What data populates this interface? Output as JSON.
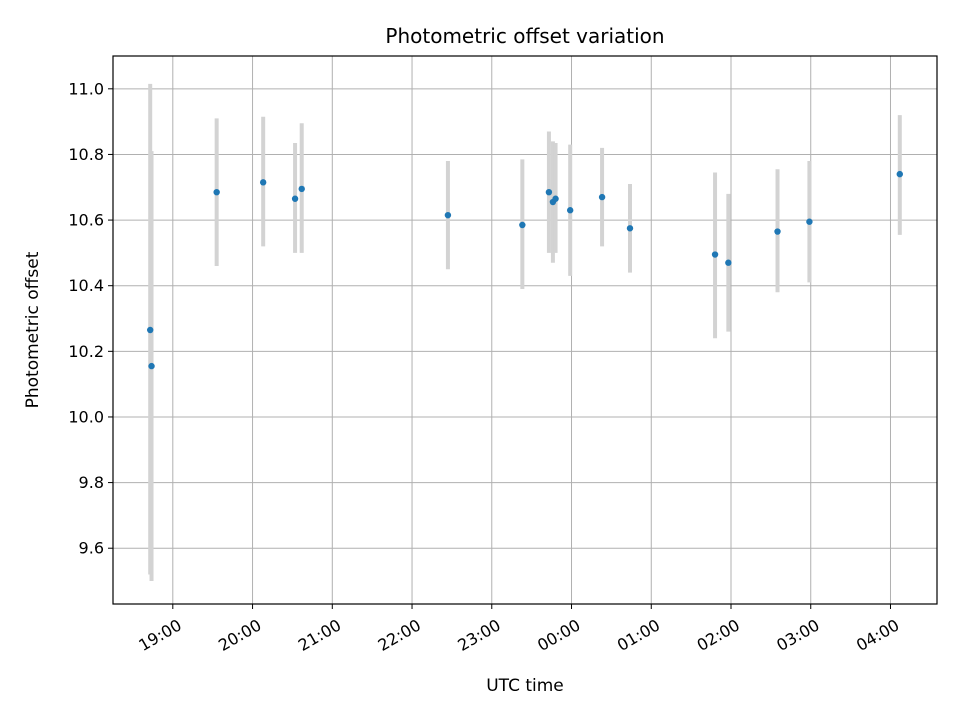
{
  "chart_data": {
    "type": "scatter",
    "title": "Photometric offset variation",
    "xlabel": "UTC time",
    "ylabel": "Photometric offset",
    "xlim": [
      "18:15",
      "04:35"
    ],
    "ylim": [
      9.43,
      11.1
    ],
    "grid": true,
    "colors": {
      "point": "#1f77b4",
      "errorbar": "#d3d3d3",
      "grid": "#b0b0b0"
    },
    "x_ticks": [
      "19:00",
      "20:00",
      "21:00",
      "22:00",
      "23:00",
      "00:00",
      "01:00",
      "02:00",
      "03:00",
      "04:00"
    ],
    "y_ticks": [
      "9.6",
      "9.8",
      "10.0",
      "10.2",
      "10.4",
      "10.6",
      "10.8",
      "11.0"
    ],
    "points": [
      {
        "x": "18:43",
        "y": 10.265,
        "ylow": 9.52,
        "yhigh": 11.015
      },
      {
        "x": "18:44",
        "y": 10.155,
        "ylow": 9.5,
        "yhigh": 10.81
      },
      {
        "x": "19:33",
        "y": 10.685,
        "ylow": 10.46,
        "yhigh": 10.91
      },
      {
        "x": "20:08",
        "y": 10.715,
        "ylow": 10.52,
        "yhigh": 10.915
      },
      {
        "x": "20:32",
        "y": 10.665,
        "ylow": 10.5,
        "yhigh": 10.835
      },
      {
        "x": "20:37",
        "y": 10.695,
        "ylow": 10.5,
        "yhigh": 10.895
      },
      {
        "x": "22:27",
        "y": 10.615,
        "ylow": 10.45,
        "yhigh": 10.78
      },
      {
        "x": "23:23",
        "y": 10.585,
        "ylow": 10.39,
        "yhigh": 10.785
      },
      {
        "x": "23:43",
        "y": 10.685,
        "ylow": 10.5,
        "yhigh": 10.87
      },
      {
        "x": "23:46",
        "y": 10.655,
        "ylow": 10.47,
        "yhigh": 10.84
      },
      {
        "x": "23:48",
        "y": 10.665,
        "ylow": 10.5,
        "yhigh": 10.835
      },
      {
        "x": "23:59",
        "y": 10.63,
        "ylow": 10.43,
        "yhigh": 10.83
      },
      {
        "x": "00:23",
        "y": 10.67,
        "ylow": 10.52,
        "yhigh": 10.82
      },
      {
        "x": "00:44",
        "y": 10.575,
        "ylow": 10.44,
        "yhigh": 10.71
      },
      {
        "x": "01:48",
        "y": 10.495,
        "ylow": 10.24,
        "yhigh": 10.745
      },
      {
        "x": "01:58",
        "y": 10.47,
        "ylow": 10.26,
        "yhigh": 10.68
      },
      {
        "x": "02:35",
        "y": 10.565,
        "ylow": 10.38,
        "yhigh": 10.755
      },
      {
        "x": "02:59",
        "y": 10.595,
        "ylow": 10.41,
        "yhigh": 10.78
      },
      {
        "x": "04:07",
        "y": 10.74,
        "ylow": 10.555,
        "yhigh": 10.92
      }
    ]
  }
}
